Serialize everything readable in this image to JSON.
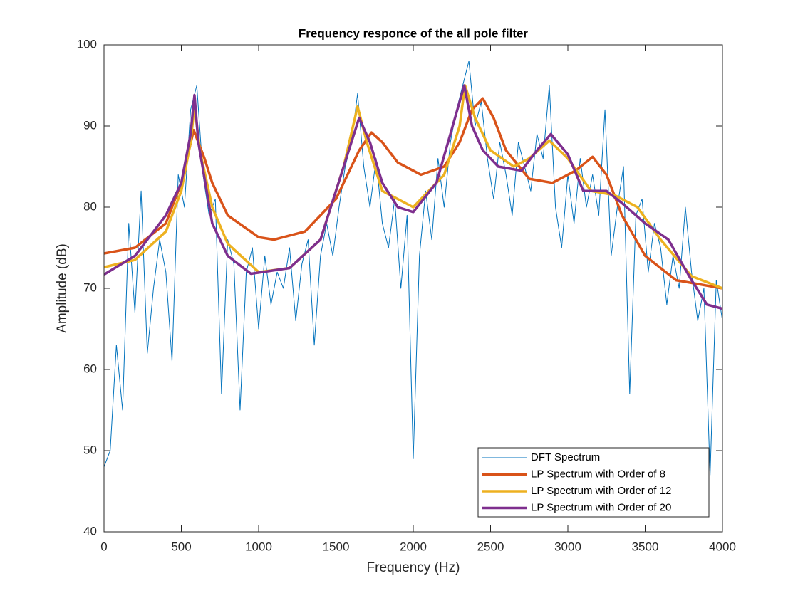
{
  "chart_data": {
    "type": "line",
    "title": "Frequency responce of the all pole filter",
    "x_label": "Frequency (Hz)",
    "y_label": "Amplitude (dB)",
    "xlim": [
      0,
      4000
    ],
    "ylim": [
      40,
      100
    ],
    "xticks": [
      0,
      500,
      1000,
      1500,
      2000,
      2500,
      3000,
      3500,
      4000
    ],
    "yticks": [
      40,
      50,
      60,
      70,
      80,
      90,
      100
    ],
    "legend": "lower right",
    "series": [
      {
        "name": "DFT Spectrum",
        "color": "#0072BD",
        "width": 1,
        "x": [
          0,
          40,
          80,
          120,
          160,
          200,
          240,
          280,
          320,
          360,
          400,
          440,
          480,
          520,
          560,
          600,
          640,
          680,
          720,
          760,
          800,
          840,
          880,
          920,
          960,
          1000,
          1040,
          1080,
          1120,
          1160,
          1200,
          1240,
          1280,
          1320,
          1360,
          1400,
          1440,
          1480,
          1520,
          1560,
          1600,
          1640,
          1680,
          1720,
          1760,
          1800,
          1840,
          1880,
          1920,
          1960,
          2000,
          2040,
          2080,
          2120,
          2160,
          2200,
          2240,
          2280,
          2320,
          2360,
          2400,
          2440,
          2480,
          2520,
          2560,
          2600,
          2640,
          2680,
          2720,
          2760,
          2800,
          2840,
          2880,
          2920,
          2960,
          3000,
          3040,
          3080,
          3120,
          3160,
          3200,
          3240,
          3280,
          3320,
          3360,
          3400,
          3440,
          3480,
          3520,
          3560,
          3600,
          3640,
          3680,
          3720,
          3760,
          3800,
          3840,
          3880,
          3920,
          3960,
          4000
        ],
        "values": [
          48,
          50,
          63,
          55,
          78,
          67,
          82,
          62,
          70,
          76,
          72,
          61,
          84,
          80,
          92,
          95,
          84,
          79,
          81,
          57,
          76,
          73,
          55,
          72,
          75,
          65,
          74,
          68,
          72,
          70,
          75,
          66,
          73,
          76,
          63,
          74,
          78,
          74,
          80,
          85,
          88,
          94,
          85,
          80,
          86,
          78,
          75,
          81,
          70,
          79,
          49,
          74,
          82,
          76,
          86,
          80,
          88,
          92,
          95,
          98,
          90,
          93,
          86,
          81,
          88,
          84,
          79,
          88,
          85,
          82,
          89,
          86,
          95,
          80,
          75,
          84,
          78,
          86,
          80,
          84,
          79,
          92,
          74,
          80,
          85,
          57,
          79,
          81,
          72,
          78,
          75,
          68,
          74,
          70,
          80,
          72,
          66,
          70,
          47,
          71,
          66
        ]
      },
      {
        "name": "LP Spectrum with Order of 8",
        "color": "#D95319",
        "width": 3.5,
        "x": [
          0,
          200,
          400,
          500,
          580,
          650,
          700,
          800,
          1000,
          1100,
          1300,
          1500,
          1650,
          1730,
          1800,
          1900,
          2050,
          2200,
          2300,
          2380,
          2450,
          2520,
          2600,
          2750,
          2900,
          3050,
          3160,
          3250,
          3350,
          3500,
          3700,
          3850,
          4000
        ],
        "values": [
          74.3,
          75,
          78,
          83,
          89.5,
          86,
          83,
          79,
          76.3,
          76,
          77,
          81,
          87,
          89.2,
          88,
          85.5,
          84,
          85,
          88,
          92,
          93.4,
          91,
          87,
          83.5,
          83,
          84.5,
          86.2,
          84,
          79,
          74,
          71,
          70.5,
          70
        ]
      },
      {
        "name": "LP Spectrum with Order of 12",
        "color": "#EDB120",
        "width": 3.5,
        "x": [
          0,
          200,
          400,
          500,
          560,
          585,
          620,
          700,
          800,
          1000,
          1200,
          1400,
          1550,
          1640,
          1700,
          1800,
          2000,
          2200,
          2300,
          2335,
          2400,
          2500,
          2650,
          2750,
          2880,
          3000,
          3150,
          3300,
          3450,
          3600,
          3800,
          4000
        ],
        "values": [
          72.6,
          73.5,
          77,
          82,
          88,
          92.5,
          87,
          80,
          75.5,
          72,
          72.5,
          76,
          85,
          92.4,
          88,
          82,
          80,
          84,
          90,
          95,
          91,
          87,
          85,
          86,
          88.2,
          86,
          82,
          81.5,
          80,
          76,
          71.5,
          70
        ]
      },
      {
        "name": "LP Spectrum with Order of 20",
        "color": "#7E2F8E",
        "width": 3.5,
        "x": [
          0,
          200,
          400,
          500,
          560,
          585,
          610,
          700,
          800,
          950,
          1200,
          1400,
          1550,
          1650,
          1720,
          1800,
          1900,
          2000,
          2150,
          2270,
          2330,
          2380,
          2450,
          2550,
          2700,
          2800,
          2890,
          3000,
          3100,
          3250,
          3350,
          3500,
          3650,
          3800,
          3900,
          4000
        ],
        "values": [
          71.7,
          74,
          79,
          83,
          89,
          93.8,
          88,
          78,
          74,
          71.8,
          72.5,
          76,
          85,
          91,
          88,
          83,
          80,
          79.4,
          83,
          91,
          95,
          90,
          87,
          85,
          84.5,
          87,
          89,
          86.5,
          82,
          82,
          80.5,
          78,
          76,
          71,
          68,
          67.5
        ]
      }
    ]
  }
}
